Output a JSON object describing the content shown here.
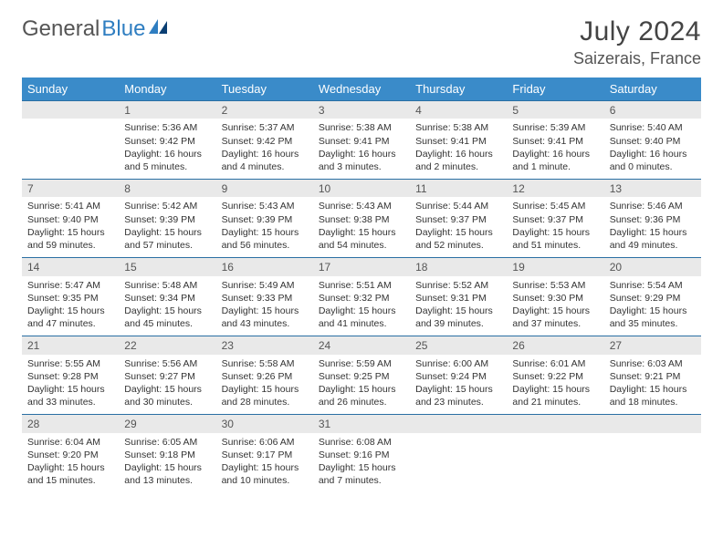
{
  "logo": {
    "text1": "General",
    "text2": "Blue"
  },
  "title": "July 2024",
  "location": "Saizerais, France",
  "colors": {
    "header_bg": "#3a8bc9",
    "header_text": "#ffffff",
    "row_border": "#2a6fa3",
    "daynum_bg": "#e9e9e9",
    "logo_blue": "#2f7ec1"
  },
  "weekdays": [
    "Sunday",
    "Monday",
    "Tuesday",
    "Wednesday",
    "Thursday",
    "Friday",
    "Saturday"
  ],
  "weeks": [
    {
      "nums": [
        "",
        "1",
        "2",
        "3",
        "4",
        "5",
        "6"
      ],
      "cells": [
        {
          "empty": true
        },
        {
          "sunrise": "Sunrise: 5:36 AM",
          "sunset": "Sunset: 9:42 PM",
          "day1": "Daylight: 16 hours",
          "day2": "and 5 minutes."
        },
        {
          "sunrise": "Sunrise: 5:37 AM",
          "sunset": "Sunset: 9:42 PM",
          "day1": "Daylight: 16 hours",
          "day2": "and 4 minutes."
        },
        {
          "sunrise": "Sunrise: 5:38 AM",
          "sunset": "Sunset: 9:41 PM",
          "day1": "Daylight: 16 hours",
          "day2": "and 3 minutes."
        },
        {
          "sunrise": "Sunrise: 5:38 AM",
          "sunset": "Sunset: 9:41 PM",
          "day1": "Daylight: 16 hours",
          "day2": "and 2 minutes."
        },
        {
          "sunrise": "Sunrise: 5:39 AM",
          "sunset": "Sunset: 9:41 PM",
          "day1": "Daylight: 16 hours",
          "day2": "and 1 minute."
        },
        {
          "sunrise": "Sunrise: 5:40 AM",
          "sunset": "Sunset: 9:40 PM",
          "day1": "Daylight: 16 hours",
          "day2": "and 0 minutes."
        }
      ]
    },
    {
      "nums": [
        "7",
        "8",
        "9",
        "10",
        "11",
        "12",
        "13"
      ],
      "cells": [
        {
          "sunrise": "Sunrise: 5:41 AM",
          "sunset": "Sunset: 9:40 PM",
          "day1": "Daylight: 15 hours",
          "day2": "and 59 minutes."
        },
        {
          "sunrise": "Sunrise: 5:42 AM",
          "sunset": "Sunset: 9:39 PM",
          "day1": "Daylight: 15 hours",
          "day2": "and 57 minutes."
        },
        {
          "sunrise": "Sunrise: 5:43 AM",
          "sunset": "Sunset: 9:39 PM",
          "day1": "Daylight: 15 hours",
          "day2": "and 56 minutes."
        },
        {
          "sunrise": "Sunrise: 5:43 AM",
          "sunset": "Sunset: 9:38 PM",
          "day1": "Daylight: 15 hours",
          "day2": "and 54 minutes."
        },
        {
          "sunrise": "Sunrise: 5:44 AM",
          "sunset": "Sunset: 9:37 PM",
          "day1": "Daylight: 15 hours",
          "day2": "and 52 minutes."
        },
        {
          "sunrise": "Sunrise: 5:45 AM",
          "sunset": "Sunset: 9:37 PM",
          "day1": "Daylight: 15 hours",
          "day2": "and 51 minutes."
        },
        {
          "sunrise": "Sunrise: 5:46 AM",
          "sunset": "Sunset: 9:36 PM",
          "day1": "Daylight: 15 hours",
          "day2": "and 49 minutes."
        }
      ]
    },
    {
      "nums": [
        "14",
        "15",
        "16",
        "17",
        "18",
        "19",
        "20"
      ],
      "cells": [
        {
          "sunrise": "Sunrise: 5:47 AM",
          "sunset": "Sunset: 9:35 PM",
          "day1": "Daylight: 15 hours",
          "day2": "and 47 minutes."
        },
        {
          "sunrise": "Sunrise: 5:48 AM",
          "sunset": "Sunset: 9:34 PM",
          "day1": "Daylight: 15 hours",
          "day2": "and 45 minutes."
        },
        {
          "sunrise": "Sunrise: 5:49 AM",
          "sunset": "Sunset: 9:33 PM",
          "day1": "Daylight: 15 hours",
          "day2": "and 43 minutes."
        },
        {
          "sunrise": "Sunrise: 5:51 AM",
          "sunset": "Sunset: 9:32 PM",
          "day1": "Daylight: 15 hours",
          "day2": "and 41 minutes."
        },
        {
          "sunrise": "Sunrise: 5:52 AM",
          "sunset": "Sunset: 9:31 PM",
          "day1": "Daylight: 15 hours",
          "day2": "and 39 minutes."
        },
        {
          "sunrise": "Sunrise: 5:53 AM",
          "sunset": "Sunset: 9:30 PM",
          "day1": "Daylight: 15 hours",
          "day2": "and 37 minutes."
        },
        {
          "sunrise": "Sunrise: 5:54 AM",
          "sunset": "Sunset: 9:29 PM",
          "day1": "Daylight: 15 hours",
          "day2": "and 35 minutes."
        }
      ]
    },
    {
      "nums": [
        "21",
        "22",
        "23",
        "24",
        "25",
        "26",
        "27"
      ],
      "cells": [
        {
          "sunrise": "Sunrise: 5:55 AM",
          "sunset": "Sunset: 9:28 PM",
          "day1": "Daylight: 15 hours",
          "day2": "and 33 minutes."
        },
        {
          "sunrise": "Sunrise: 5:56 AM",
          "sunset": "Sunset: 9:27 PM",
          "day1": "Daylight: 15 hours",
          "day2": "and 30 minutes."
        },
        {
          "sunrise": "Sunrise: 5:58 AM",
          "sunset": "Sunset: 9:26 PM",
          "day1": "Daylight: 15 hours",
          "day2": "and 28 minutes."
        },
        {
          "sunrise": "Sunrise: 5:59 AM",
          "sunset": "Sunset: 9:25 PM",
          "day1": "Daylight: 15 hours",
          "day2": "and 26 minutes."
        },
        {
          "sunrise": "Sunrise: 6:00 AM",
          "sunset": "Sunset: 9:24 PM",
          "day1": "Daylight: 15 hours",
          "day2": "and 23 minutes."
        },
        {
          "sunrise": "Sunrise: 6:01 AM",
          "sunset": "Sunset: 9:22 PM",
          "day1": "Daylight: 15 hours",
          "day2": "and 21 minutes."
        },
        {
          "sunrise": "Sunrise: 6:03 AM",
          "sunset": "Sunset: 9:21 PM",
          "day1": "Daylight: 15 hours",
          "day2": "and 18 minutes."
        }
      ]
    },
    {
      "nums": [
        "28",
        "29",
        "30",
        "31",
        "",
        "",
        ""
      ],
      "cells": [
        {
          "sunrise": "Sunrise: 6:04 AM",
          "sunset": "Sunset: 9:20 PM",
          "day1": "Daylight: 15 hours",
          "day2": "and 15 minutes."
        },
        {
          "sunrise": "Sunrise: 6:05 AM",
          "sunset": "Sunset: 9:18 PM",
          "day1": "Daylight: 15 hours",
          "day2": "and 13 minutes."
        },
        {
          "sunrise": "Sunrise: 6:06 AM",
          "sunset": "Sunset: 9:17 PM",
          "day1": "Daylight: 15 hours",
          "day2": "and 10 minutes."
        },
        {
          "sunrise": "Sunrise: 6:08 AM",
          "sunset": "Sunset: 9:16 PM",
          "day1": "Daylight: 15 hours",
          "day2": "and 7 minutes."
        },
        {
          "empty": true
        },
        {
          "empty": true
        },
        {
          "empty": true
        }
      ]
    }
  ]
}
